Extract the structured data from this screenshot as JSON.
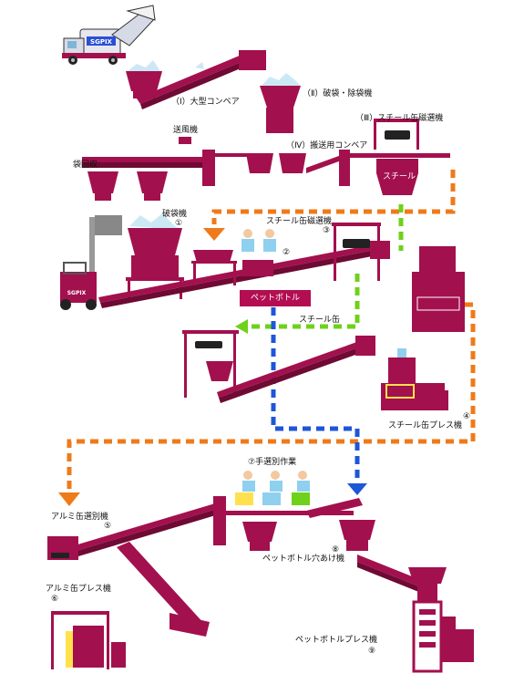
{
  "colors": {
    "machine": "#a3104e",
    "machine_dark": "#6e0a33",
    "orange_path": "#ef7a1a",
    "green_path": "#6fd11a",
    "blue_path": "#1e56d8",
    "worker_shirt": "#8fd0ef",
    "truck_logo": "SGPIX"
  },
  "labels": {
    "conveyor_large": "（Ⅰ）大型コンベア",
    "bag_breaker_remover": "（Ⅱ）破袋・除袋機",
    "steel_magnet_1": "（Ⅲ）スチール缶磁選機",
    "transport_conveyor": "（Ⅳ）搬送用コンベア",
    "blower": "送風機",
    "bag_collection": "袋回収",
    "steel": "スチール",
    "bag_breaker": "破袋機",
    "bag_breaker_num": "①",
    "worker_num": "②",
    "steel_magnet_2": "スチール缶磁選機",
    "steel_magnet_2_num": "③",
    "pet_bottle": "ペットボトル",
    "steel_can": "スチール缶",
    "steel_press": "スチール缶プレス機",
    "steel_press_num": "④",
    "manual_sorting": "⑦手選別作業",
    "aluminum_sorter": "アルミ缶選別機",
    "aluminum_sorter_num": "⑤",
    "pet_perforator": "ペットボトル穴あけ機",
    "pet_perforator_num": "⑧",
    "aluminum_press": "アルミ缶プレス機",
    "aluminum_press_num": "⑥",
    "pet_press": "ペットボトルプレス機",
    "pet_press_num": "⑨"
  }
}
